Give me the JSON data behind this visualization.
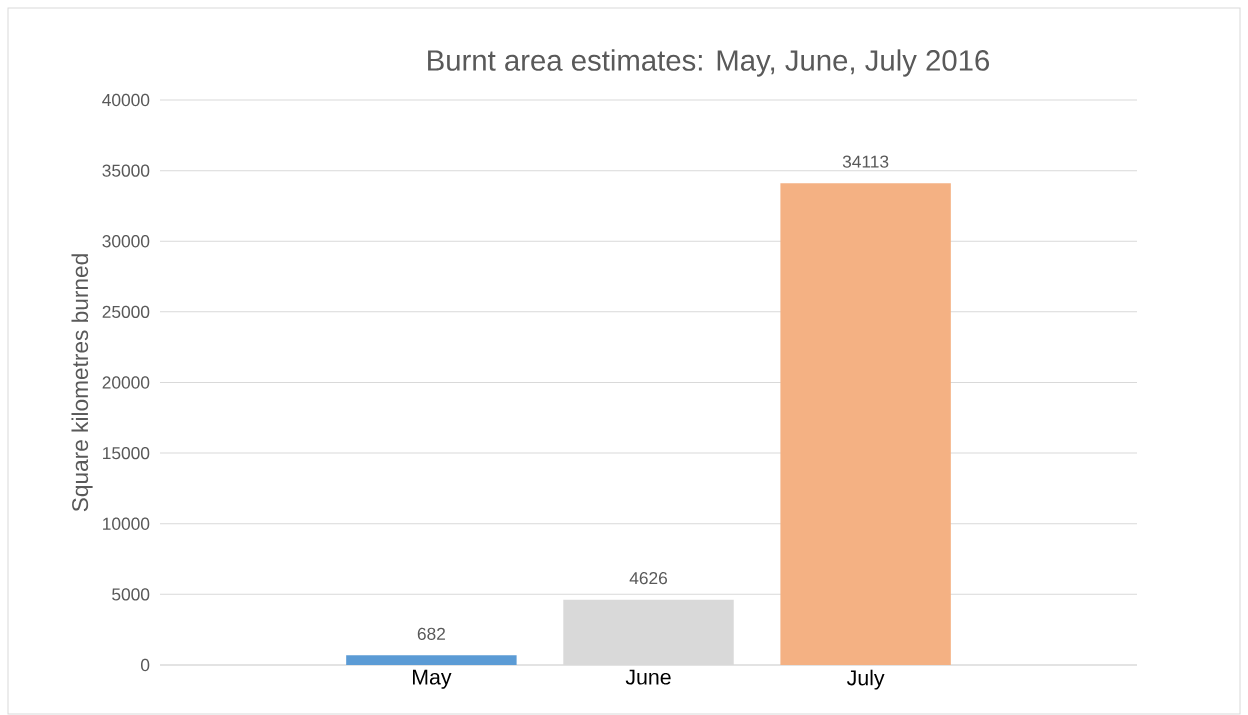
{
  "chart_data": {
    "type": "bar",
    "title": "Burnt area estimates: May, June, July 2016",
    "ylabel": "Square kilometres burned",
    "categories": [
      "May",
      "June",
      "July"
    ],
    "values": [
      682,
      4626,
      34113
    ],
    "colors": [
      "#5b9bd5",
      "#d9d9d9",
      "#f4b183"
    ],
    "ylim": [
      0,
      40000
    ],
    "yticks": [
      0,
      5000,
      10000,
      15000,
      20000,
      25000,
      30000,
      35000,
      40000
    ],
    "grid": "y",
    "data_labels": true
  }
}
